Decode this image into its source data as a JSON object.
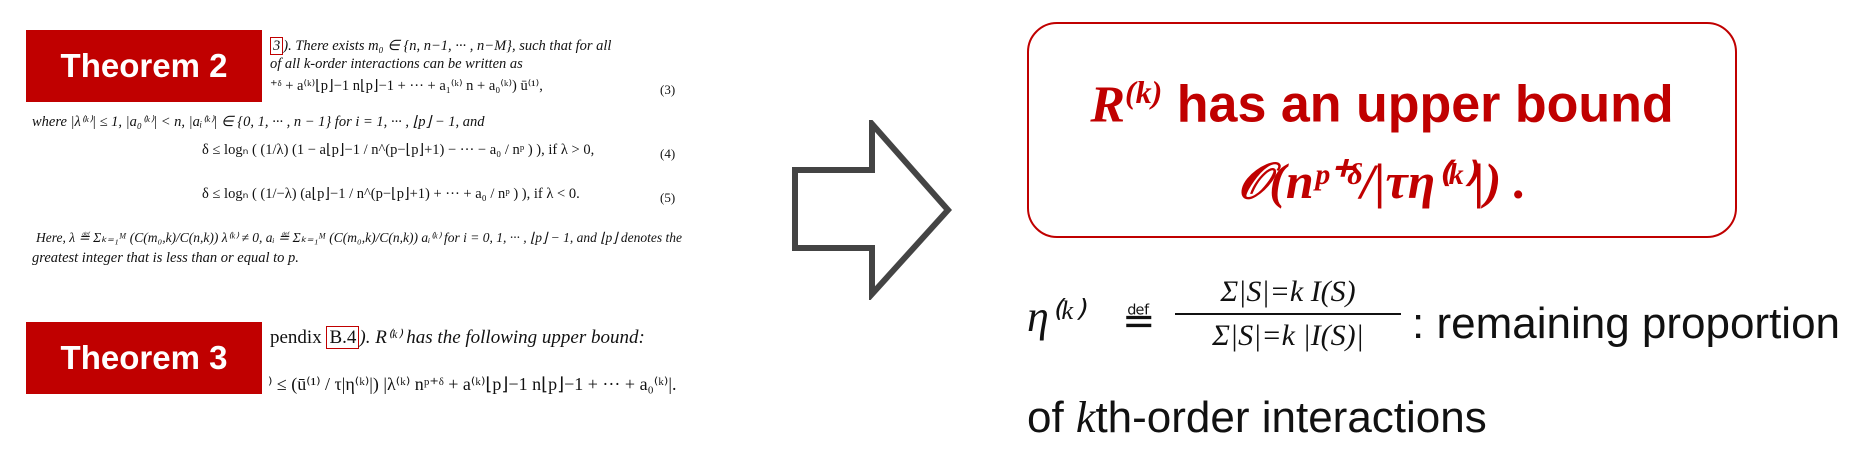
{
  "theorem2": {
    "badge": "Theorem 2",
    "lines": [
      "3). There exists m₀ ∈ {n, n−1, ··· , n−M}, such that for all",
      "of all k-order interactions can be written as",
      "⁺ᵟ + a⁽ᵏ⁾⌊p⌋−1 n⌊p⌋−1 + ··· + a₁⁽ᵏ⁾ n + a₀⁽ᵏ⁾) ū⁽¹⁾,",
      "where |λ⁽ᵏ⁾| ≤ 1, |a₀⁽ᵏ⁾| < n, |aᵢ⁽ᵏ⁾| ∈ {0, 1, ··· , n − 1} for i = 1, ··· , ⌊p⌋ − 1, and",
      "δ ≤ logₙ ( (1/λ) (1 − a⌊p⌋−1 / n^(p−⌊p⌋+1) − ··· − a₀ / nᵖ ) ),    if λ > 0,",
      "δ ≤ logₙ ( (1/−λ) (a⌊p⌋−1 / n^(p−⌊p⌋+1) + ··· + a₀ / nᵖ ) ),    if λ < 0.",
      "Here, λ ≝ Σₖ₌₁ᴹ (C(m₀,k)/C(n,k)) λ⁽ᵏ⁾ ≠ 0, aᵢ ≝ Σₖ₌₁ᴹ (C(m₀,k)/C(n,k)) aᵢ⁽ᵏ⁾ for i = 0, 1, ··· , ⌊p⌋ − 1, and ⌊p⌋ denotes the",
      "greatest integer that is less than or equal to p."
    ],
    "eq_numbers": [
      "(3)",
      "(4)",
      "(5)"
    ]
  },
  "theorem3": {
    "badge": "Theorem 3",
    "line1_pre": "pendix ",
    "ref": "B.4",
    "line1_post": ").  R⁽ᵏ⁾ has the following upper bound:",
    "line2": "⁾ ≤ (ū⁽¹⁾ / τ|η⁽ᵏ⁾|) |λ⁽ᵏ⁾ nᵖ⁺ᵟ + a⁽ᵏ⁾⌊p⌋−1 n⌊p⌋−1 + ··· + a₀⁽ᵏ⁾|."
  },
  "bound": {
    "R": "R",
    "sup_k": "(k)",
    "line1_text": " has an upper bound",
    "line2": "𝒪(nᵖ⁺ᵟ/|τη⁽ᵏ⁾|) ."
  },
  "definition": {
    "eta": "η⁽ᵏ⁾",
    "def_symbol": "≝",
    "numerator": "Σ|S|=k I(S)",
    "denominator": "Σ|S|=k |I(S)|",
    "text": ": remaining proportion",
    "line2_pre": "of ",
    "line2_var": "k",
    "line2_post": "th-order interactions"
  },
  "colors": {
    "accent": "#c00000",
    "arrow_stroke": "#444444"
  },
  "icons": {
    "arrow": "right-arrow-icon"
  }
}
